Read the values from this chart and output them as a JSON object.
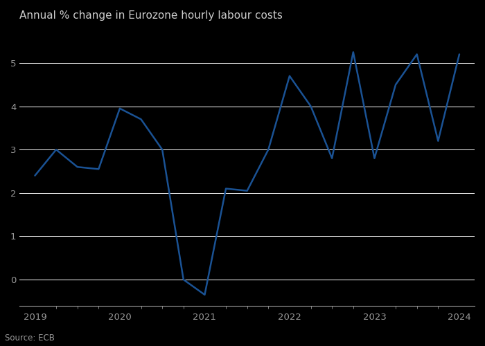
{
  "title": "Annual % change in Eurozone hourly labour costs",
  "source": "Source: ECB",
  "line_color": "#1a5294",
  "background_color": "#000000",
  "plot_bg_color": "#000000",
  "grid_color": "#ffffff",
  "tick_color": "#999999",
  "label_color": "#cccccc",
  "title_color": "#cccccc",
  "x_values": [
    2019.0,
    2019.25,
    2019.5,
    2019.75,
    2020.0,
    2020.25,
    2020.5,
    2020.75,
    2021.0,
    2021.25,
    2021.5,
    2021.75,
    2022.0,
    2022.25,
    2022.5,
    2022.75,
    2023.0,
    2023.25,
    2023.5,
    2023.75,
    2024.0
  ],
  "y_values": [
    2.4,
    3.0,
    2.6,
    2.55,
    3.95,
    3.7,
    3.0,
    0.0,
    -0.35,
    2.1,
    2.05,
    3.0,
    4.7,
    4.0,
    2.8,
    5.25,
    2.8,
    4.5,
    5.2,
    3.2,
    5.2
  ],
  "ylim": [
    -0.6,
    5.8
  ],
  "yticks": [
    0,
    1,
    2,
    3,
    4,
    5
  ],
  "xticks": [
    2019,
    2020,
    2021,
    2022,
    2023,
    2024
  ],
  "grid_linewidth": 0.7,
  "title_fontsize": 11,
  "source_fontsize": 8.5,
  "tick_fontsize": 9.5,
  "line_width": 1.8,
  "xlim_left": 2018.82,
  "xlim_right": 2024.18
}
